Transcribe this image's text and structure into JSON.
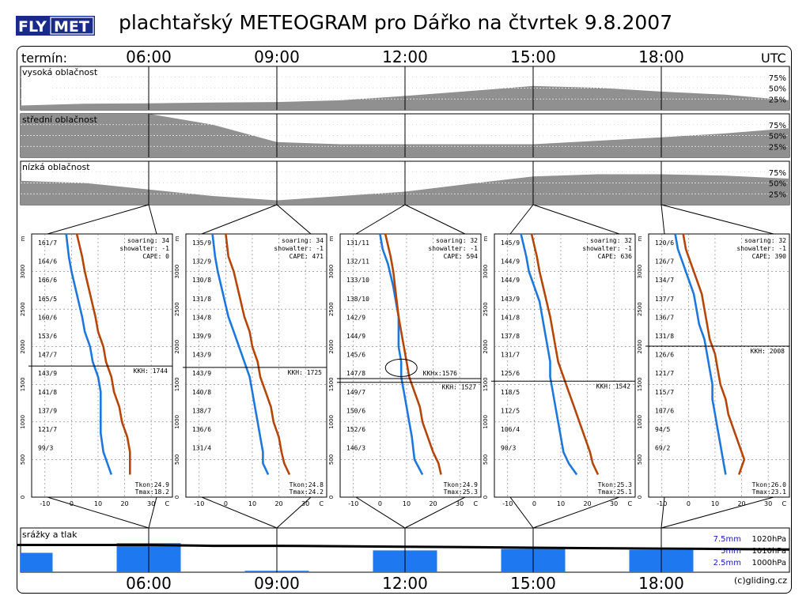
{
  "header": {
    "logo_part1": "FLY",
    "logo_part2": "MET",
    "title": "plachtařský METEOGRAM pro Dářko na čtvrtek 9.8.2007"
  },
  "timeline": {
    "term_label": "termín:",
    "utc_label": "UTC",
    "times": [
      "06:00",
      "09:00",
      "12:00",
      "15:00",
      "18:00"
    ],
    "copyright": "(c)gliding.cz"
  },
  "chart_data": [
    {
      "type": "area",
      "title": "vysoká oblačnost",
      "x": [
        "03:00",
        "04:30",
        "06:00",
        "07:30",
        "09:00",
        "10:30",
        "12:00",
        "13:30",
        "15:00",
        "16:30",
        "18:00",
        "19:30",
        "21:00"
      ],
      "values": [
        10,
        14,
        15,
        17,
        18,
        22,
        32,
        43,
        55,
        51,
        42,
        35,
        22
      ],
      "yticks": [
        "75%",
        "50%",
        "25%"
      ]
    },
    {
      "type": "area",
      "title": "střední oblačnost",
      "x": [
        "03:00",
        "04:30",
        "06:00",
        "07:30",
        "09:00",
        "10:30",
        "12:00",
        "13:30",
        "15:00",
        "16:30",
        "18:00",
        "19:30",
        "21:00"
      ],
      "values": [
        100,
        100,
        100,
        75,
        35,
        30,
        30,
        30,
        30,
        38,
        46,
        55,
        67
      ],
      "yticks": [
        "75%",
        "50%",
        "25%"
      ]
    },
    {
      "type": "area",
      "title": "nízká oblačnost",
      "x": [
        "03:00",
        "04:30",
        "06:00",
        "07:30",
        "09:00",
        "10:30",
        "12:00",
        "13:30",
        "15:00",
        "16:30",
        "18:00",
        "19:30",
        "21:00"
      ],
      "values": [
        55,
        50,
        35,
        20,
        10,
        20,
        30,
        48,
        65,
        70,
        70,
        67,
        60
      ],
      "yticks": [
        "75%",
        "50%",
        "25%"
      ]
    },
    {
      "type": "line",
      "title": "06:00",
      "soaring": "soaring: 34",
      "showalter": "showalter: -1",
      "cape": "CAPE:  0",
      "kkh": "KKH: 1744",
      "kkh_m": 1744,
      "tkon": "Tkon:24.9",
      "tmax": "Tmax:18.2",
      "wind_labels": [
        "161/7",
        "164/6",
        "166/6",
        "165/5",
        "160/6",
        "153/6",
        "147/7",
        "143/9",
        "141/8",
        "137/9",
        "121/7",
        "99/3"
      ],
      "xticks": [
        "-10",
        "0",
        "10",
        "20",
        "30",
        "C"
      ],
      "yticks": [
        "3000",
        "2500",
        "2000",
        "1500",
        "1000",
        "500",
        "0"
      ],
      "series": [
        {
          "name": "",
          "color": "#1e78dc",
          "points": [
            [
              -2,
              3500
            ],
            [
              -1,
              3200
            ],
            [
              0,
              3000
            ],
            [
              2,
              2700
            ],
            [
              4,
              2400
            ],
            [
              5,
              2200
            ],
            [
              7,
              2000
            ],
            [
              8,
              1800
            ],
            [
              10,
              1600
            ],
            [
              11,
              1400
            ],
            [
              11,
              1300
            ],
            [
              11,
              1150
            ],
            [
              11,
              1000
            ],
            [
              11,
              850
            ],
            [
              12,
              600
            ],
            [
              15,
              300
            ]
          ]
        },
        {
          "name": "",
          "color": "#b4460a",
          "points": [
            [
              2,
              3500
            ],
            [
              4,
              3200
            ],
            [
              5,
              3000
            ],
            [
              7,
              2700
            ],
            [
              9,
              2400
            ],
            [
              10,
              2200
            ],
            [
              12,
              2000
            ],
            [
              13,
              1800
            ],
            [
              15,
              1600
            ],
            [
              16,
              1400
            ],
            [
              18,
              1200
            ],
            [
              19,
              1000
            ],
            [
              21,
              800
            ],
            [
              22,
              600
            ],
            [
              22,
              400
            ],
            [
              22,
              300
            ]
          ]
        }
      ]
    },
    {
      "type": "line",
      "title": "09:00",
      "soaring": "soaring: 34",
      "showalter": "showalter: -1",
      "cape": "CAPE: 471",
      "kkh": "KKH: 1725",
      "kkh_m": 1725,
      "tkon": "Tkon:24.8",
      "tmax": "Tmax:24.2",
      "wind_labels": [
        "135/9",
        "132/9",
        "130/8",
        "131/8",
        "134/8",
        "139/9",
        "143/9",
        "143/9",
        "140/8",
        "138/7",
        "136/6",
        "131/4"
      ],
      "xticks": [
        "-10",
        "0",
        "10",
        "20",
        "30",
        "C"
      ],
      "yticks": [
        "3000",
        "2500",
        "2000",
        "1500",
        "1000",
        "500",
        "0"
      ],
      "series": [
        {
          "name": "",
          "color": "#1e78dc",
          "points": [
            [
              -5,
              3500
            ],
            [
              -4,
              3200
            ],
            [
              -3,
              3000
            ],
            [
              -1,
              2700
            ],
            [
              1,
              2400
            ],
            [
              3,
              2200
            ],
            [
              5,
              2000
            ],
            [
              7,
              1800
            ],
            [
              9,
              1600
            ],
            [
              10,
              1400
            ],
            [
              11,
              1200
            ],
            [
              12,
              1000
            ],
            [
              13,
              800
            ],
            [
              14,
              600
            ],
            [
              14,
              450
            ],
            [
              16,
              300
            ]
          ]
        },
        {
          "name": "",
          "color": "#b4460a",
          "points": [
            [
              0,
              3500
            ],
            [
              1,
              3200
            ],
            [
              3,
              3000
            ],
            [
              5,
              2700
            ],
            [
              7,
              2400
            ],
            [
              9,
              2200
            ],
            [
              10,
              2000
            ],
            [
              12,
              1800
            ],
            [
              13,
              1600
            ],
            [
              15,
              1400
            ],
            [
              17,
              1200
            ],
            [
              18,
              1000
            ],
            [
              20,
              800
            ],
            [
              21,
              600
            ],
            [
              22,
              450
            ],
            [
              24,
              300
            ]
          ]
        }
      ]
    },
    {
      "type": "line",
      "title": "12:00",
      "soaring": "soaring: 32",
      "showalter": "showalter: -1",
      "cape": "CAPE: 594",
      "kkh": "KKH: 1527",
      "kkh_m": 1527,
      "kkhx": "KKHx:1576",
      "kkhx_m": 1576,
      "tkon": "Tkon:24.9",
      "tmax": "Tmax:25.3",
      "wind_labels": [
        "131/11",
        "132/11",
        "133/10",
        "138/10",
        "142/9",
        "144/9",
        "145/6",
        "147/8",
        "149/7",
        "150/6",
        "152/6",
        "146/3"
      ],
      "xticks": [
        "-10",
        "0",
        "10",
        "20",
        "30",
        "C"
      ],
      "yticks": [
        "3000",
        "2500",
        "2000",
        "1500",
        "1000",
        "500",
        "0"
      ],
      "series": [
        {
          "name": "",
          "color": "#1e78dc",
          "points": [
            [
              0,
              3500
            ],
            [
              1,
              3300
            ],
            [
              3,
              3100
            ],
            [
              5,
              2800
            ],
            [
              6,
              2600
            ],
            [
              7,
              2400
            ],
            [
              7,
              2200
            ],
            [
              7,
              2000
            ],
            [
              8,
              1800
            ],
            [
              8,
              1600
            ],
            [
              9,
              1400
            ],
            [
              10,
              1200
            ],
            [
              11,
              1000
            ],
            [
              12,
              800
            ],
            [
              13,
              500
            ],
            [
              16,
              300
            ]
          ]
        },
        {
          "name": "",
          "color": "#b4460a",
          "points": [
            [
              2,
              3500
            ],
            [
              4,
              3200
            ],
            [
              5,
              3000
            ],
            [
              6,
              2700
            ],
            [
              7,
              2400
            ],
            [
              8,
              2200
            ],
            [
              9,
              2000
            ],
            [
              10,
              1800
            ],
            [
              11,
              1600
            ],
            [
              13,
              1400
            ],
            [
              15,
              1200
            ],
            [
              16,
              1000
            ],
            [
              18,
              800
            ],
            [
              20,
              600
            ],
            [
              22,
              450
            ],
            [
              23,
              300
            ]
          ]
        }
      ]
    },
    {
      "type": "line",
      "title": "15:00",
      "soaring": "soaring: 32",
      "showalter": "showalter: -1",
      "cape": "CAPE: 636",
      "kkh": "KKH: 1542",
      "kkh_m": 1542,
      "tkon": "Tkon:25.3",
      "tmax": "Tmax:25.1",
      "wind_labels": [
        "145/9",
        "144/9",
        "144/9",
        "143/9",
        "141/8",
        "137/8",
        "131/7",
        "125/6",
        "118/5",
        "112/5",
        "106/4",
        "90/3"
      ],
      "xticks": [
        "-10",
        "0",
        "10",
        "20",
        "30",
        "C"
      ],
      "yticks": [
        "3000",
        "2500",
        "2000",
        "1500",
        "1000",
        "500",
        "0"
      ],
      "series": [
        {
          "name": "",
          "color": "#1e78dc",
          "points": [
            [
              -5,
              3500
            ],
            [
              -3,
              3200
            ],
            [
              -2,
              3000
            ],
            [
              0,
              2800
            ],
            [
              2,
              2600
            ],
            [
              3,
              2400
            ],
            [
              4,
              2200
            ],
            [
              5,
              2000
            ],
            [
              6,
              1800
            ],
            [
              6,
              1600
            ],
            [
              7,
              1400
            ],
            [
              8,
              1200
            ],
            [
              9,
              1000
            ],
            [
              10,
              800
            ],
            [
              11,
              600
            ],
            [
              13,
              450
            ],
            [
              16,
              300
            ]
          ]
        },
        {
          "name": "",
          "color": "#b4460a",
          "points": [
            [
              -1,
              3500
            ],
            [
              1,
              3200
            ],
            [
              2,
              3000
            ],
            [
              4,
              2700
            ],
            [
              6,
              2400
            ],
            [
              7,
              2200
            ],
            [
              8,
              2000
            ],
            [
              9,
              1800
            ],
            [
              11,
              1600
            ],
            [
              13,
              1400
            ],
            [
              15,
              1200
            ],
            [
              17,
              1000
            ],
            [
              19,
              800
            ],
            [
              21,
              600
            ],
            [
              22,
              450
            ],
            [
              24,
              300
            ]
          ]
        }
      ]
    },
    {
      "type": "line",
      "title": "18:00",
      "soaring": "soaring: 32",
      "showalter": "showalter: -1",
      "cape": "CAPE: 390",
      "kkh": "KKH: 2008",
      "kkh_m": 2008,
      "tkon": "Tkon:26.0",
      "tmax": "Tmax:23.1",
      "wind_labels": [
        "120/6",
        "126/7",
        "134/7",
        "137/7",
        "136/7",
        "131/8",
        "126/6",
        "121/7",
        "115/7",
        "107/6",
        "94/5",
        "69/2"
      ],
      "xticks": [
        "-10",
        "0",
        "10",
        "20",
        "30",
        "C"
      ],
      "yticks": [
        "3000",
        "2500",
        "2000",
        "1500",
        "1000",
        "500",
        "0"
      ],
      "series": [
        {
          "name": "",
          "color": "#1e78dc",
          "points": [
            [
              -5,
              3500
            ],
            [
              -4,
              3300
            ],
            [
              -2,
              3100
            ],
            [
              0,
              2900
            ],
            [
              2,
              2700
            ],
            [
              3,
              2500
            ],
            [
              4,
              2300
            ],
            [
              6,
              2100
            ],
            [
              7,
              1900
            ],
            [
              8,
              1700
            ],
            [
              9,
              1500
            ],
            [
              9,
              1300
            ],
            [
              10,
              1100
            ],
            [
              11,
              900
            ],
            [
              12,
              700
            ],
            [
              13,
              500
            ],
            [
              14,
              300
            ]
          ]
        },
        {
          "name": "",
          "color": "#b4460a",
          "points": [
            [
              -2,
              3500
            ],
            [
              -1,
              3300
            ],
            [
              1,
              3100
            ],
            [
              3,
              2900
            ],
            [
              5,
              2700
            ],
            [
              6,
              2500
            ],
            [
              7,
              2300
            ],
            [
              8,
              2100
            ],
            [
              10,
              1900
            ],
            [
              11,
              1700
            ],
            [
              12,
              1500
            ],
            [
              14,
              1300
            ],
            [
              15,
              1100
            ],
            [
              17,
              900
            ],
            [
              19,
              700
            ],
            [
              21,
              500
            ],
            [
              20,
              400
            ],
            [
              19,
              300
            ]
          ]
        }
      ]
    },
    {
      "type": "bar",
      "title": "srážky a tlak",
      "categories": [
        "03:00",
        "04:30",
        "06:00",
        "07:30",
        "09:00",
        "10:30",
        "12:00",
        "13:30",
        "15:00",
        "16:30",
        "18:00",
        "19:30",
        "21:00"
      ],
      "values": [
        4.0,
        0,
        6.0,
        0,
        0.3,
        0,
        4.5,
        0,
        4.8,
        0,
        4.6,
        0,
        0
      ],
      "pressure_hpa": [
        1015.0,
        1015.0,
        1015.0,
        1014.5,
        1014.5,
        1014.3,
        1014.0,
        1013.8,
        1013.5,
        1013.2,
        1013.0,
        1012.8,
        1012.5
      ],
      "legend": [
        {
          "mm": "7.5mm",
          "hpa": "1020hPa"
        },
        {
          "mm": "5mm",
          "hpa": "1010hPa"
        },
        {
          "mm": "2.5mm",
          "hpa": "1000hPa"
        }
      ]
    }
  ]
}
